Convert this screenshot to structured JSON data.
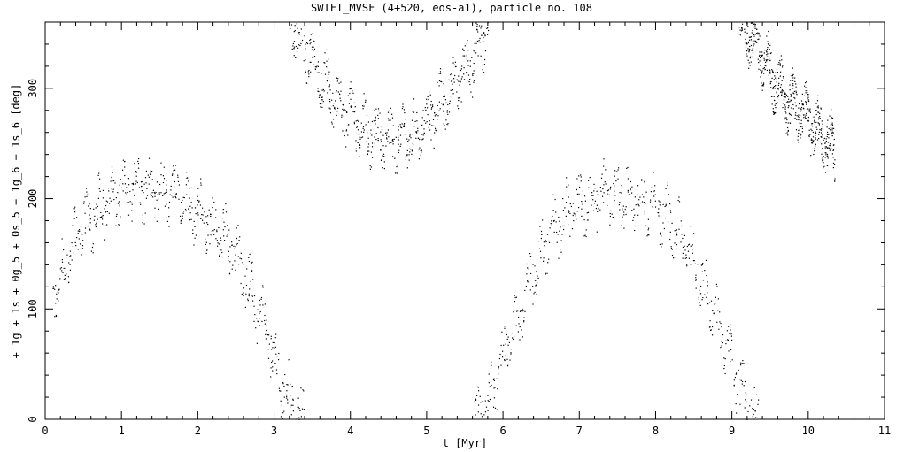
{
  "chart_data": {
    "type": "scatter",
    "title": "SWIFT_MVSF (4+520, eos-a1), particle no. 108",
    "xlabel": "t [Myr]",
    "ylabel": "+ 1g + 1s + 0g_5 + 0s_5 − 1g_6 − 1s_6 [deg]",
    "xlim": [
      0,
      11
    ],
    "ylim": [
      0,
      360
    ],
    "xticks": [
      0,
      1,
      2,
      3,
      4,
      5,
      6,
      7,
      8,
      9,
      10,
      11
    ],
    "yticks": [
      0,
      100,
      200,
      300
    ],
    "grid": false,
    "marker": "dot",
    "color": "#000000",
    "series_trend": [
      {
        "segment": 1,
        "t": [
          0.1,
          0.3,
          0.5,
          0.7,
          0.9,
          1.1,
          1.3,
          1.5,
          1.7,
          1.9,
          2.1,
          2.3,
          2.5,
          2.7,
          2.9,
          3.1,
          3.3,
          3.4
        ],
        "y": [
          110,
          150,
          175,
          190,
          200,
          210,
          210,
          208,
          205,
          195,
          180,
          168,
          150,
          115,
          80,
          30,
          8,
          0
        ]
      },
      {
        "segment": 2,
        "t": [
          3.2,
          3.4,
          3.6,
          3.8,
          4.0,
          4.2,
          4.4,
          4.6,
          4.8,
          5.0,
          5.2,
          5.4,
          5.6,
          5.8
        ],
        "y": [
          360,
          340,
          310,
          290,
          275,
          262,
          258,
          255,
          258,
          272,
          290,
          305,
          325,
          355
        ]
      },
      {
        "segment": 3,
        "t": [
          5.6,
          5.8,
          6.0,
          6.2,
          6.4,
          6.6,
          6.8,
          7.0,
          7.2,
          7.4,
          7.6,
          7.8,
          8.0,
          8.2,
          8.4,
          8.6,
          8.8,
          9.0,
          9.2,
          9.35
        ],
        "y": [
          0,
          15,
          55,
          95,
          135,
          165,
          185,
          195,
          200,
          205,
          205,
          200,
          195,
          180,
          160,
          125,
          90,
          50,
          10,
          0
        ]
      },
      {
        "segment": 4,
        "t": [
          9.1,
          9.3,
          9.5,
          9.7,
          9.9,
          10.1,
          10.3,
          10.35
        ],
        "y": [
          360,
          345,
          315,
          290,
          280,
          262,
          250,
          235
        ]
      }
    ]
  }
}
